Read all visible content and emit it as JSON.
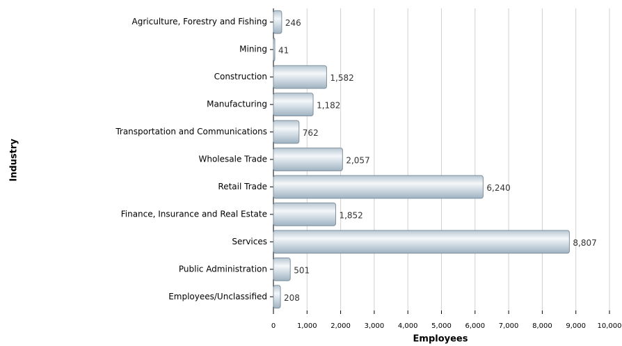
{
  "chart_data": {
    "type": "barh",
    "categories": [
      "Agriculture, Forestry and Fishing",
      "Mining",
      "Construction",
      "Manufacturing",
      "Transportation and Communications",
      "Wholesale Trade",
      "Retail Trade",
      "Finance, Insurance and Real Estate",
      "Services",
      "Public Administration",
      "Employees/Unclassified"
    ],
    "values": [
      246,
      41,
      1582,
      1182,
      762,
      2057,
      6240,
      1852,
      8807,
      501,
      208
    ],
    "value_labels": [
      "246",
      "41",
      "1,582",
      "1,182",
      "762",
      "2,057",
      "6,240",
      "1,852",
      "8,807",
      "501",
      "208"
    ],
    "xlim": [
      0,
      10000
    ],
    "xticks": [
      0,
      {
        "value": 1000,
        "label": "1,000"
      },
      {
        "value": 2000,
        "label": "2,000"
      },
      {
        "value": 3000,
        "label": "3,000"
      },
      {
        "value": 4000,
        "label": "4,000"
      },
      {
        "value": 5000,
        "label": "5,000"
      },
      {
        "value": 6000,
        "label": "6,000"
      },
      {
        "value": 7000,
        "label": "7,000"
      },
      {
        "value": 8000,
        "label": "8,000"
      },
      {
        "value": 9000,
        "label": "9,000"
      },
      {
        "value": 10000,
        "label": "10,000"
      }
    ],
    "xlabel": "Employees",
    "ylabel": "Industry",
    "grid": true
  }
}
